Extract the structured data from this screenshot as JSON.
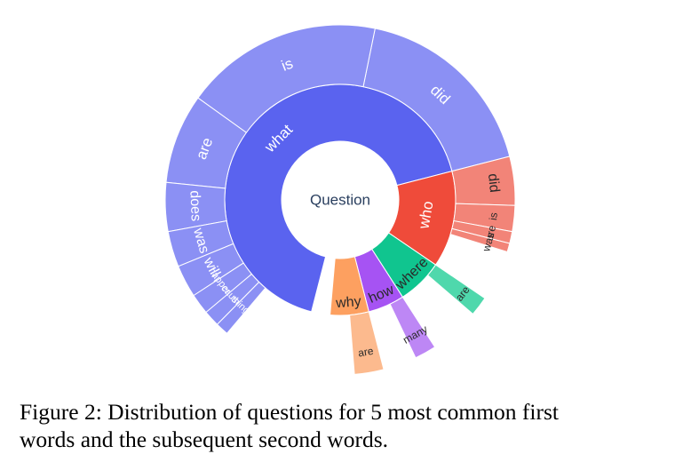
{
  "chart_data": {
    "type": "sunburst",
    "center_label": "Question",
    "first_words": [
      {
        "label": "what",
        "value": 0.67,
        "color": "#5a63ef",
        "children": [
          {
            "label": "did",
            "value": 0.178,
            "color": "#8b90f4"
          },
          {
            "label": "is",
            "value": 0.183,
            "color": "#8b90f4"
          },
          {
            "label": "are",
            "value": 0.083,
            "color": "#8b90f4"
          },
          {
            "label": "does",
            "value": 0.045,
            "color": "#8b90f4"
          },
          {
            "label": "was",
            "value": 0.033,
            "color": "#8b90f4"
          },
          {
            "label": "will",
            "value": 0.03,
            "color": "#8b90f4"
          },
          {
            "label": "happened",
            "value": 0.019,
            "color": "#8b90f4"
          },
          {
            "label": "caused",
            "value": 0.015,
            "color": "#8b90f4"
          },
          {
            "label": "things",
            "value": 0.012,
            "color": "#8b90f4"
          }
        ]
      },
      {
        "label": "who",
        "value": 0.135,
        "color": "#ef4b3a",
        "children": [
          {
            "label": "did",
            "value": 0.045,
            "color": "#f28478"
          },
          {
            "label": "is",
            "value": 0.024,
            "color": "#f28478"
          },
          {
            "label": "are",
            "value": 0.011,
            "color": "#f28478"
          },
          {
            "label": "was",
            "value": 0.008,
            "color": "#f28478"
          }
        ]
      },
      {
        "label": "where",
        "value": 0.064,
        "color": "#10c58f",
        "children": [
          {
            "label": "are",
            "value": 0.018,
            "color": "#4fd8ac"
          }
        ]
      },
      {
        "label": "how",
        "value": 0.051,
        "color": "#a653f3",
        "children": [
          {
            "label": "many",
            "value": 0.02,
            "color": "#bd87f5"
          }
        ]
      },
      {
        "label": "why",
        "value": 0.054,
        "color": "#fda060",
        "children": [
          {
            "label": "are",
            "value": 0.027,
            "color": "#fcba8e"
          }
        ]
      }
    ]
  },
  "caption": {
    "line1": "Figure 2: Distribution of questions for 5 most common first",
    "line2": "words and the subsequent second words."
  }
}
